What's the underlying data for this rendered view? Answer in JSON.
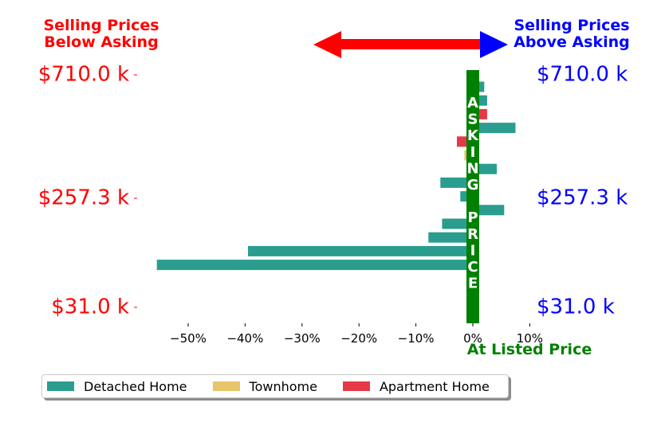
{
  "headers": {
    "left": [
      "Selling Prices",
      "Below Asking"
    ],
    "right": [
      "Selling Prices",
      "Above Asking"
    ]
  },
  "asking_label": [
    "A",
    "S",
    "K",
    "I",
    "N",
    "G",
    "",
    "P",
    "R",
    "I",
    "C",
    "E"
  ],
  "at_listed_label": "At Listed Price",
  "colors": {
    "below": "#ff0000",
    "above": "#0000ff",
    "asking": "#008000",
    "arrow_left": "#ff0000",
    "arrow_right": "#0000ff"
  },
  "chart_data": {
    "type": "bar",
    "orientation": "horizontal",
    "xlabel": "",
    "ylabel": "",
    "xlim": [
      -56,
      11
    ],
    "x_ticks": [
      -50,
      -40,
      -30,
      -20,
      -10,
      0,
      10
    ],
    "x_tick_labels": [
      "−50%",
      "−40%",
      "−30%",
      "−20%",
      "−10%",
      "0%",
      "10%"
    ],
    "y_tick_labels_left": [
      "$710.0 k",
      "$257.3 k",
      "$31.0 k"
    ],
    "y_tick_labels_right": [
      "$710.0 k",
      "$257.3 k",
      "$31.0 k"
    ],
    "series": [
      {
        "name": "Detached Home",
        "color": "#2a9d8f"
      },
      {
        "name": "Townhome",
        "color": "#e9c46a"
      },
      {
        "name": "Apartment Home",
        "color": "#e63946"
      }
    ],
    "bars": [
      {
        "series": "Detached Home",
        "value": 2
      },
      {
        "series": "Detached Home",
        "value": 2.5
      },
      {
        "series": "Apartment Home",
        "value": 2.5
      },
      {
        "series": "Detached Home",
        "value": 7.5
      },
      {
        "series": "Apartment Home",
        "value": -2.8
      },
      {
        "series": "Townhome",
        "value": -1.5
      },
      {
        "series": "Detached Home",
        "value": 4.2
      },
      {
        "series": "Detached Home",
        "value": -5.7
      },
      {
        "series": "Detached Home",
        "value": -2.2
      },
      {
        "series": "Detached Home",
        "value": 5.5
      },
      {
        "series": "Detached Home",
        "value": -5.4
      },
      {
        "series": "Detached Home",
        "value": -7.8
      },
      {
        "series": "Detached Home",
        "value": -39.5
      },
      {
        "series": "Detached Home",
        "value": -55.5
      }
    ],
    "grid": false,
    "legend_position": "bottom-left"
  }
}
